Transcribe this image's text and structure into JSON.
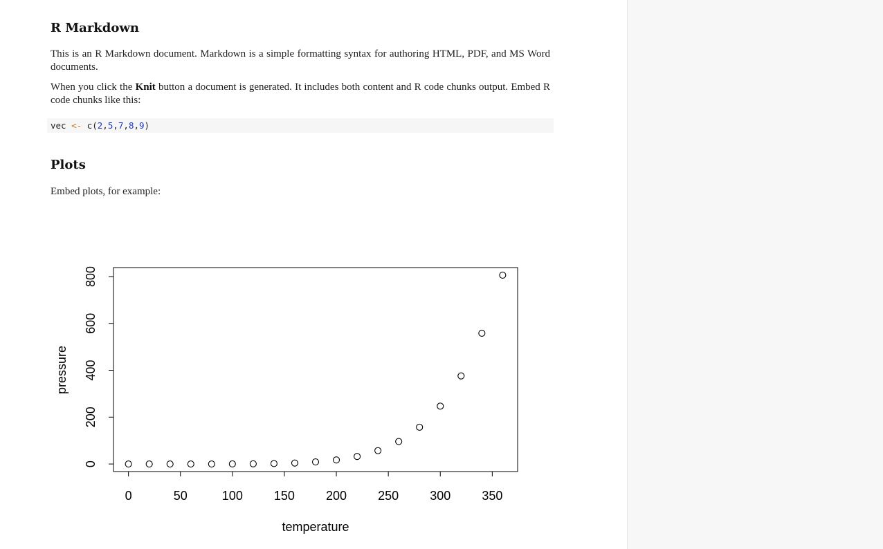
{
  "document": {
    "heading_rmarkdown": "R Markdown",
    "intro_text": "This is an R Markdown document. Markdown is a simple formatting syntax for authoring HTML, PDF, and MS Word documents.",
    "knit_before": "When you click the ",
    "knit_bold": "Knit",
    "knit_after": " button a document is generated. It includes both content and R code chunks output. Embed R code chunks like this:",
    "code": {
      "var": "vec",
      "assign_op": "<-",
      "fn": "c(",
      "args": [
        "2",
        "5",
        "7",
        "8",
        "9"
      ],
      "sep": ",",
      "close": ")"
    },
    "heading_plots": "Plots",
    "embed_text": "Embed plots, for example:"
  },
  "chart_data": {
    "type": "scatter",
    "title": "",
    "xlabel": "temperature",
    "ylabel": "pressure",
    "x": [
      0,
      20,
      40,
      60,
      80,
      100,
      120,
      140,
      160,
      180,
      200,
      220,
      240,
      260,
      280,
      300,
      320,
      340,
      360
    ],
    "y": [
      0.0002,
      0.0012,
      0.006,
      0.03,
      0.09,
      0.27,
      0.75,
      1.85,
      4.2,
      8.8,
      17.3,
      32.1,
      57,
      96,
      157,
      247,
      376,
      558,
      806
    ],
    "xlim": [
      -14.4,
      374.4
    ],
    "ylim": [
      -32.24,
      838.24
    ],
    "xticks": [
      0,
      50,
      100,
      150,
      200,
      250,
      300,
      350
    ],
    "yticks": [
      0,
      200,
      400,
      600,
      800
    ],
    "xtick_labels": [
      "0",
      "50",
      "100",
      "150",
      "200",
      "250",
      "300",
      "350"
    ],
    "ytick_labels": [
      "0",
      "200",
      "400",
      "600",
      "800"
    ],
    "marker": "open-circle",
    "grid": false,
    "legend": "none",
    "colors": {
      "points": "#000000",
      "axes": "#000000"
    }
  },
  "side_panel": {
    "background": "#f7f7f7"
  }
}
